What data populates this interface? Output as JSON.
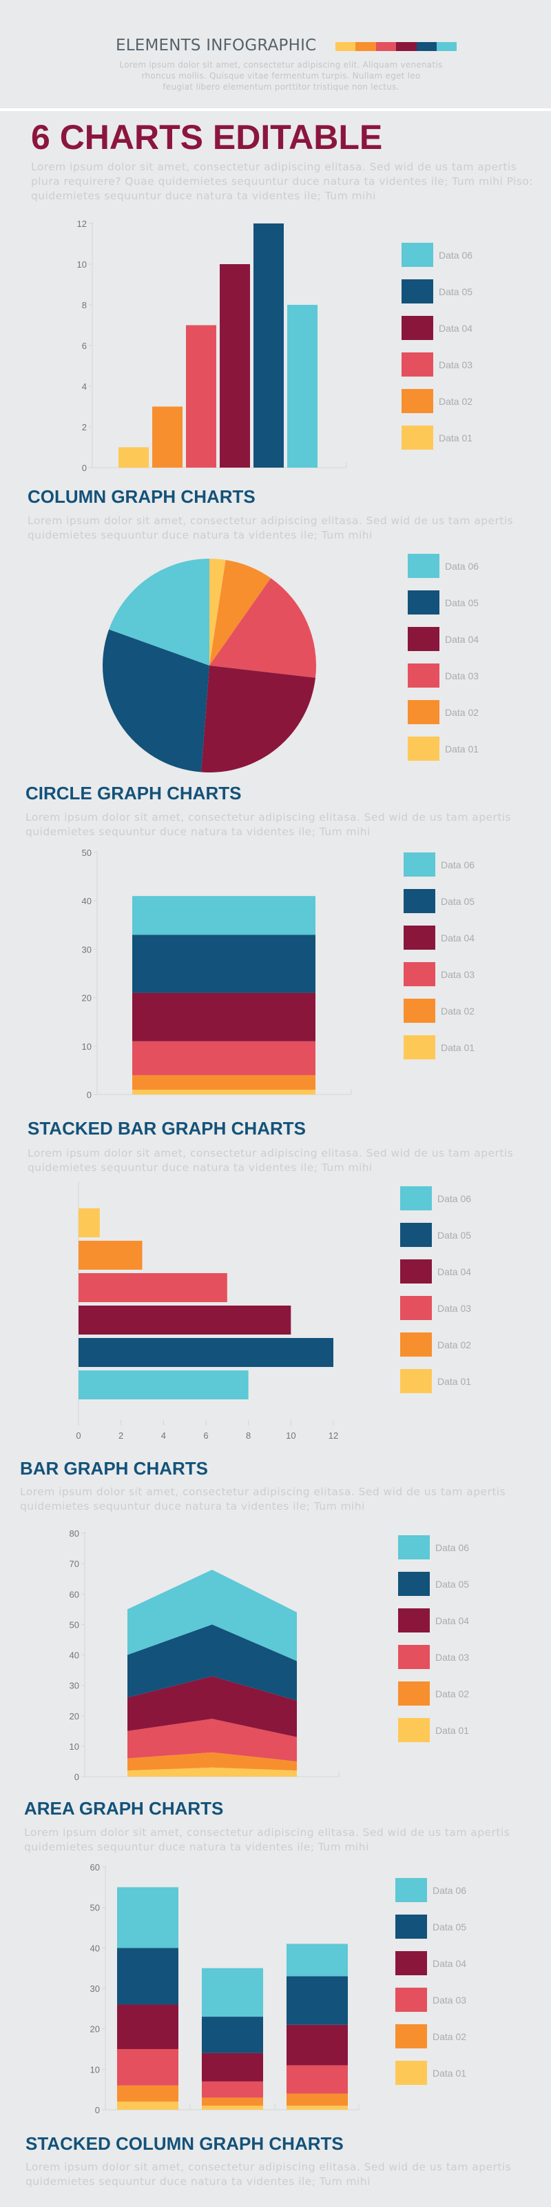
{
  "header": {
    "title": "ELEMENTS INFOGRAPHIC",
    "subtitle": "Lorem ipsum dolor sit amet, consectetur adipiscing elit. Aliquam venenatis\nrhoncus mollis. Quisque vitae fermentum turpis. Nullam eget leo\nfeugiat libero elementum porttitor tristique non lectus.",
    "palette": [
      "#fec857",
      "#f78f2e",
      "#e4505d",
      "#8a163c",
      "#13527a",
      "#5dc8d6"
    ]
  },
  "intro": {
    "title": "6 CHARTS EDITABLE",
    "text": "Lorem ipsum dolor sit amet, consectetur adipiscing elitasa. Sed wid de us tam apertis\nplura requirere? Quae quidemietes sequuntur duce natura ta videntes ile; Tum mihi Piso:\nquidemietes sequuntur duce natura ta videntes ile; Tum mihi"
  },
  "sections": [
    {
      "title": "COLUMN GRAPH CHARTS",
      "text": "Lorem ipsum dolor sit amet, consectetur adipiscing elitasa. Sed wid de us tam apertis\nquidemietes sequuntur duce natura ta videntes ile; Tum mihi"
    },
    {
      "title": "CIRCLE GRAPH CHARTS",
      "text": "Lorem ipsum dolor sit amet, consectetur adipiscing elitasa. Sed wid de us tam apertis\nquidemietes sequuntur duce natura ta videntes ile; Tum mihi"
    },
    {
      "title": "STACKED BAR GRAPH CHARTS",
      "text": "Lorem ipsum dolor sit amet, consectetur adipiscing elitasa. Sed wid de us tam apertis\nquidemietes sequuntur duce natura ta videntes ile; Tum mihi"
    },
    {
      "title": "BAR GRAPH CHARTS",
      "text": "Lorem ipsum dolor sit amet, consectetur adipiscing elitasa. Sed wid de us tam apertis\nquidemietes sequuntur duce natura ta videntes ile; Tum mihi"
    },
    {
      "title": "AREA GRAPH CHARTS",
      "text": "Lorem ipsum dolor sit amet, consectetur adipiscing elitasa. Sed wid de us tam apertis\nquidemietes sequuntur duce natura ta videntes ile; Tum mihi"
    },
    {
      "title": "STACKED COLUMN GRAPH CHARTS",
      "text": "Lorem ipsum dolor sit amet, consectetur adipiscing elitasa. Sed wid de us tam apertis\nquidemietes sequuntur duce natura ta videntes ile; Tum mihi"
    }
  ],
  "chart_data": [
    {
      "type": "bar",
      "orientation": "vertical",
      "legend": "right",
      "grid": false,
      "ylim": [
        0,
        12
      ],
      "yticks": [
        "0",
        "2",
        "4",
        "6",
        "8",
        "10",
        "12"
      ],
      "series": [
        {
          "name": "Data 01",
          "values": [
            1
          ],
          "color": "#fec857"
        },
        {
          "name": "Data 02",
          "values": [
            3
          ],
          "color": "#f78f2e"
        },
        {
          "name": "Data 03",
          "values": [
            7
          ],
          "color": "#e4505d"
        },
        {
          "name": "Data 04",
          "values": [
            10
          ],
          "color": "#8a163c"
        },
        {
          "name": "Data 05",
          "values": [
            12
          ],
          "color": "#13527a"
        },
        {
          "name": "Data 06",
          "values": [
            8
          ],
          "color": "#5dc8d6"
        }
      ]
    },
    {
      "type": "pie",
      "legend": "right",
      "series": [
        {
          "name": "Data 01",
          "values": [
            1
          ],
          "color": "#fec857"
        },
        {
          "name": "Data 02",
          "values": [
            3
          ],
          "color": "#f78f2e"
        },
        {
          "name": "Data 03",
          "values": [
            7
          ],
          "color": "#e4505d"
        },
        {
          "name": "Data 04",
          "values": [
            10
          ],
          "color": "#8a163c"
        },
        {
          "name": "Data 05",
          "values": [
            12
          ],
          "color": "#13527a"
        },
        {
          "name": "Data 06",
          "values": [
            8
          ],
          "color": "#5dc8d6"
        }
      ]
    },
    {
      "type": "bar",
      "stacked": true,
      "orientation": "vertical",
      "legend": "right",
      "grid": false,
      "ylim": [
        0,
        50
      ],
      "yticks": [
        "0",
        "10",
        "20",
        "30",
        "40",
        "50"
      ],
      "series": [
        {
          "name": "Data 01",
          "values": [
            1
          ],
          "color": "#fec857"
        },
        {
          "name": "Data 02",
          "values": [
            3
          ],
          "color": "#f78f2e"
        },
        {
          "name": "Data 03",
          "values": [
            7
          ],
          "color": "#e4505d"
        },
        {
          "name": "Data 04",
          "values": [
            10
          ],
          "color": "#8a163c"
        },
        {
          "name": "Data 05",
          "values": [
            12
          ],
          "color": "#13527a"
        },
        {
          "name": "Data 06",
          "values": [
            8
          ],
          "color": "#5dc8d6"
        }
      ]
    },
    {
      "type": "bar",
      "orientation": "horizontal",
      "legend": "right",
      "grid": false,
      "xlim": [
        0,
        12
      ],
      "xticks": [
        "0",
        "2",
        "4",
        "6",
        "8",
        "10",
        "12"
      ],
      "series": [
        {
          "name": "Data 01",
          "values": [
            1
          ],
          "color": "#fec857"
        },
        {
          "name": "Data 02",
          "values": [
            3
          ],
          "color": "#f78f2e"
        },
        {
          "name": "Data 03",
          "values": [
            7
          ],
          "color": "#e4505d"
        },
        {
          "name": "Data 04",
          "values": [
            10
          ],
          "color": "#8a163c"
        },
        {
          "name": "Data 05",
          "values": [
            12
          ],
          "color": "#13527a"
        },
        {
          "name": "Data 06",
          "values": [
            8
          ],
          "color": "#5dc8d6"
        }
      ]
    },
    {
      "type": "area",
      "stacked": true,
      "legend": "right",
      "grid": false,
      "ylim": [
        0,
        80
      ],
      "yticks": [
        "0",
        "10",
        "20",
        "30",
        "40",
        "50",
        "60",
        "70",
        "80"
      ],
      "series": [
        {
          "name": "Data 01",
          "values": [
            2,
            3,
            2
          ],
          "color": "#fec857"
        },
        {
          "name": "Data 02",
          "values": [
            4,
            5,
            3
          ],
          "color": "#f78f2e"
        },
        {
          "name": "Data 03",
          "values": [
            9,
            11,
            8
          ],
          "color": "#e4505d"
        },
        {
          "name": "Data 04",
          "values": [
            11,
            14,
            12
          ],
          "color": "#8a163c"
        },
        {
          "name": "Data 05",
          "values": [
            14,
            17,
            13
          ],
          "color": "#13527a"
        },
        {
          "name": "Data 06",
          "values": [
            15,
            18,
            16
          ],
          "color": "#5dc8d6"
        }
      ]
    },
    {
      "type": "bar",
      "stacked": true,
      "orientation": "vertical",
      "legend": "right",
      "grid": false,
      "ylim": [
        0,
        60
      ],
      "yticks": [
        "0",
        "10",
        "20",
        "30",
        "40",
        "50",
        "60"
      ],
      "series": [
        {
          "name": "Data 01",
          "values": [
            2,
            1,
            1
          ],
          "color": "#fec857"
        },
        {
          "name": "Data 02",
          "values": [
            4,
            2,
            3
          ],
          "color": "#f78f2e"
        },
        {
          "name": "Data 03",
          "values": [
            9,
            4,
            7
          ],
          "color": "#e4505d"
        },
        {
          "name": "Data 04",
          "values": [
            11,
            7,
            10
          ],
          "color": "#8a163c"
        },
        {
          "name": "Data 05",
          "values": [
            14,
            9,
            12
          ],
          "color": "#13527a"
        },
        {
          "name": "Data 06",
          "values": [
            15,
            12,
            8
          ],
          "color": "#5dc8d6"
        }
      ]
    }
  ]
}
